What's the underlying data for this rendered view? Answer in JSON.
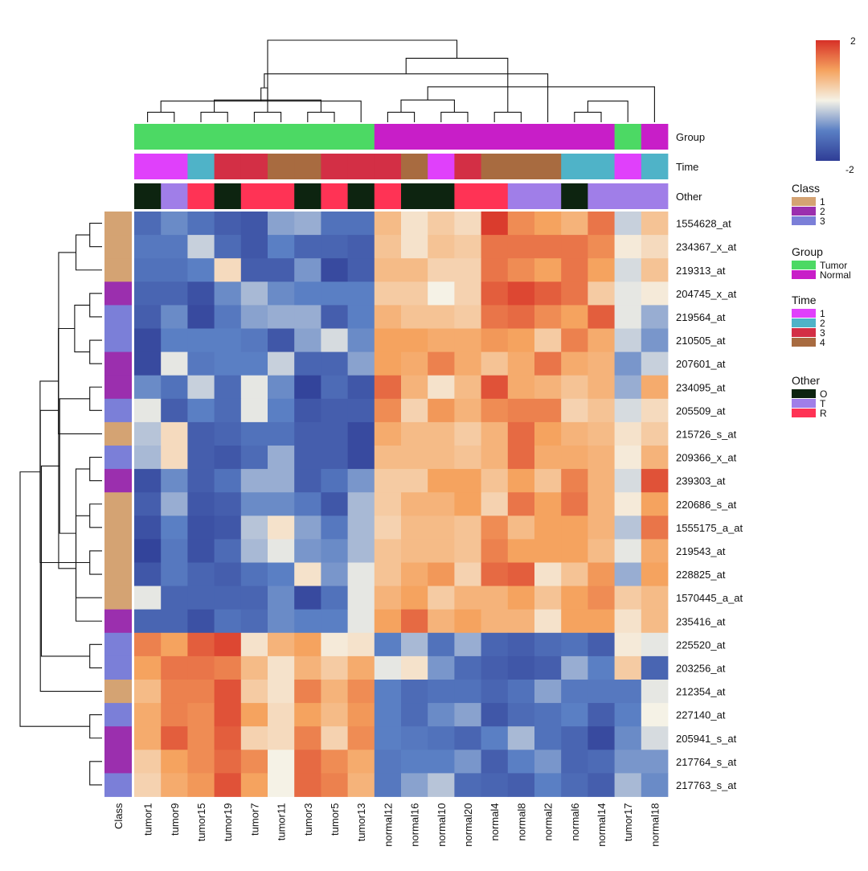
{
  "chart_data": {
    "type": "heatmap",
    "rows": [
      "1554628_at",
      "234367_x_at",
      "219313_at",
      "204745_x_at",
      "219564_at",
      "210505_at",
      "207601_at",
      "234095_at",
      "205509_at",
      "215726_s_at",
      "209366_x_at",
      "239303_at",
      "220686_s_at",
      "1555175_a_at",
      "219543_at",
      "228825_at",
      "1570445_a_at",
      "235416_at",
      "225520_at",
      "203256_at",
      "212354_at",
      "227140_at",
      "205941_s_at",
      "217764_s_at",
      "217763_s_at"
    ],
    "columns": [
      "tumor1",
      "tumor9",
      "tumor15",
      "tumor19",
      "tumor7",
      "tumor11",
      "tumor3",
      "tumor5",
      "tumor13",
      "normal12",
      "normal16",
      "normal10",
      "normal20",
      "normal4",
      "normal8",
      "normal2",
      "normal6",
      "normal14",
      "tumor17",
      "normal18"
    ],
    "values": [
      [
        -1.3,
        -0.9,
        -1.2,
        -1.5,
        -1.6,
        -0.7,
        -0.6,
        -1.2,
        -1.2,
        0.7,
        0.2,
        0.5,
        0.3,
        1.9,
        1.2,
        1.0,
        0.8,
        1.4,
        -0.3,
        0.6
      ],
      [
        -1.1,
        -1.1,
        -0.3,
        -1.3,
        -1.6,
        -1.0,
        -1.4,
        -1.4,
        -1.5,
        0.6,
        0.2,
        0.6,
        0.5,
        1.4,
        1.4,
        1.4,
        1.4,
        1.2,
        0.1,
        0.3
      ],
      [
        -1.2,
        -1.2,
        -1.0,
        0.3,
        -1.5,
        -1.5,
        -0.8,
        -1.8,
        -1.5,
        0.7,
        0.7,
        0.4,
        0.4,
        1.4,
        1.2,
        1.0,
        1.4,
        1.0,
        -0.2,
        0.6
      ],
      [
        -1.4,
        -1.4,
        -1.7,
        -0.9,
        -0.5,
        -0.9,
        -1.0,
        -1.0,
        -1.0,
        0.5,
        0.5,
        0.0,
        0.4,
        1.6,
        1.8,
        1.6,
        1.4,
        0.5,
        -0.1,
        0.1
      ],
      [
        -1.5,
        -0.9,
        -1.8,
        -1.1,
        -0.7,
        -0.6,
        -0.6,
        -1.5,
        -1.0,
        0.8,
        0.6,
        0.6,
        0.5,
        1.4,
        1.5,
        1.2,
        1.0,
        1.6,
        -0.1,
        -0.6
      ],
      [
        -1.8,
        -1.0,
        -1.0,
        -1.0,
        -1.1,
        -1.6,
        -0.7,
        -0.2,
        -0.9,
        1.0,
        1.0,
        0.9,
        0.9,
        1.1,
        1.0,
        0.5,
        1.3,
        0.9,
        -0.3,
        -0.8
      ],
      [
        -1.8,
        -0.1,
        -1.1,
        -1.0,
        -1.0,
        -0.3,
        -1.4,
        -1.4,
        -0.7,
        1.0,
        0.9,
        1.3,
        0.9,
        0.6,
        0.9,
        1.4,
        0.9,
        0.8,
        -0.8,
        -0.3
      ],
      [
        -0.9,
        -1.2,
        -0.3,
        -1.3,
        -0.1,
        -0.9,
        -1.9,
        -1.3,
        -1.6,
        1.5,
        0.8,
        0.2,
        0.7,
        1.7,
        0.9,
        0.8,
        0.6,
        0.8,
        -0.6,
        0.9
      ],
      [
        -0.1,
        -1.5,
        -1.0,
        -1.3,
        -0.1,
        -1.0,
        -1.6,
        -1.5,
        -1.5,
        1.2,
        0.4,
        1.1,
        0.8,
        1.2,
        1.3,
        1.3,
        0.4,
        0.6,
        -0.2,
        0.3
      ],
      [
        -0.4,
        0.3,
        -1.5,
        -1.4,
        -1.2,
        -1.2,
        -1.5,
        -1.5,
        -1.8,
        0.9,
        0.7,
        0.7,
        0.5,
        0.8,
        1.5,
        1.0,
        0.8,
        0.7,
        0.2,
        0.5
      ],
      [
        -0.5,
        0.3,
        -1.5,
        -1.6,
        -1.3,
        -0.6,
        -1.5,
        -1.5,
        -1.8,
        0.7,
        0.7,
        0.7,
        0.6,
        0.8,
        1.5,
        0.9,
        0.9,
        0.8,
        0.1,
        0.8
      ],
      [
        -1.7,
        -0.9,
        -1.5,
        -1.2,
        -0.6,
        -0.6,
        -1.5,
        -1.2,
        -0.8,
        0.5,
        0.5,
        1.0,
        1.0,
        0.6,
        1.0,
        0.6,
        1.3,
        0.8,
        -0.2,
        1.7
      ],
      [
        -1.5,
        -0.6,
        -1.6,
        -1.5,
        -0.9,
        -0.9,
        -1.1,
        -1.6,
        -0.5,
        0.5,
        0.8,
        0.8,
        1.0,
        0.4,
        1.4,
        1.0,
        1.4,
        0.8,
        0.1,
        1.0
      ],
      [
        -1.7,
        -1.0,
        -1.7,
        -1.6,
        -0.4,
        0.2,
        -0.7,
        -1.1,
        -0.5,
        0.4,
        0.7,
        0.7,
        0.6,
        1.2,
        0.7,
        1.0,
        1.0,
        0.8,
        -0.4,
        1.4
      ],
      [
        -1.9,
        -1.1,
        -1.7,
        -1.3,
        -0.5,
        -0.1,
        -0.8,
        -0.9,
        -0.5,
        0.6,
        0.7,
        0.7,
        0.6,
        1.3,
        1.0,
        1.0,
        1.0,
        0.7,
        -0.1,
        0.9
      ],
      [
        -1.6,
        -1.1,
        -1.4,
        -1.5,
        -1.2,
        -1.0,
        0.2,
        -0.8,
        -0.1,
        0.6,
        0.9,
        1.1,
        0.4,
        1.5,
        1.6,
        0.2,
        0.6,
        1.1,
        -0.6,
        1.0
      ],
      [
        -0.1,
        -1.4,
        -1.4,
        -1.4,
        -1.4,
        -0.9,
        -1.8,
        -1.2,
        -0.1,
        0.8,
        1.0,
        0.5,
        0.8,
        0.8,
        1.0,
        0.6,
        1.0,
        1.2,
        0.5,
        0.7
      ],
      [
        -1.4,
        -1.4,
        -1.7,
        -1.2,
        -1.3,
        -0.9,
        -1.0,
        -1.0,
        -0.1,
        1.0,
        1.5,
        0.8,
        1.0,
        0.8,
        0.8,
        0.2,
        1.0,
        1.0,
        0.2,
        0.7
      ],
      [
        1.3,
        1.0,
        1.6,
        1.8,
        0.2,
        0.8,
        1.0,
        0.1,
        0.2,
        -1.0,
        -0.5,
        -1.2,
        -0.6,
        -1.4,
        -1.5,
        -1.3,
        -1.2,
        -1.5,
        0.1,
        -0.1
      ],
      [
        1.0,
        1.4,
        1.4,
        1.3,
        0.7,
        0.2,
        0.8,
        0.5,
        0.9,
        -0.1,
        0.2,
        -0.8,
        -1.3,
        -1.5,
        -1.6,
        -1.5,
        -0.6,
        -1.0,
        0.5,
        -1.4
      ],
      [
        0.7,
        1.3,
        1.3,
        1.7,
        0.5,
        0.2,
        1.3,
        0.8,
        1.2,
        -1.0,
        -1.3,
        -1.2,
        -1.2,
        -1.4,
        -1.2,
        -0.7,
        -1.1,
        -1.1,
        -1.1,
        -0.1
      ],
      [
        0.9,
        1.3,
        1.2,
        1.7,
        1.0,
        0.3,
        1.0,
        0.7,
        1.1,
        -1.0,
        -1.3,
        -0.9,
        -0.7,
        -1.6,
        -1.3,
        -1.2,
        -1.0,
        -1.5,
        -1.0,
        0.0
      ],
      [
        0.9,
        1.6,
        1.2,
        1.6,
        0.4,
        0.3,
        1.3,
        0.4,
        1.2,
        -1.0,
        -1.1,
        -1.2,
        -1.4,
        -1.0,
        -0.5,
        -1.2,
        -1.4,
        -1.8,
        -0.9,
        -0.2
      ],
      [
        0.5,
        1.0,
        1.2,
        1.5,
        1.2,
        0.0,
        1.5,
        1.2,
        0.9,
        -1.1,
        -1.0,
        -1.0,
        -0.8,
        -1.5,
        -1.0,
        -0.8,
        -1.4,
        -1.3,
        -0.8,
        -0.8
      ],
      [
        0.4,
        0.9,
        1.1,
        1.7,
        1.0,
        0.0,
        1.5,
        1.3,
        0.8,
        -1.1,
        -0.7,
        -0.4,
        -1.3,
        -1.4,
        -1.5,
        -1.0,
        -1.3,
        -1.5,
        -0.5,
        -0.9
      ]
    ],
    "color_scale": {
      "min": -2,
      "max": 2,
      "ticks": [
        "2",
        "-2"
      ],
      "colors": [
        "#2f3d96",
        "#5a7fc4",
        "#f5f2e6",
        "#f5a35f",
        "#d73027"
      ]
    },
    "row_annotation": {
      "name": "Class",
      "values": [
        "1",
        "1",
        "1",
        "2",
        "3",
        "3",
        "2",
        "2",
        "3",
        "1",
        "3",
        "2",
        "1",
        "1",
        "1",
        "1",
        "1",
        "2",
        "3",
        "3",
        "1",
        "3",
        "2",
        "2",
        "3"
      ]
    },
    "column_annotations": [
      {
        "name": "Group",
        "values": [
          "Tumor",
          "Tumor",
          "Tumor",
          "Tumor",
          "Tumor",
          "Tumor",
          "Tumor",
          "Tumor",
          "Tumor",
          "Normal",
          "Normal",
          "Normal",
          "Normal",
          "Normal",
          "Normal",
          "Normal",
          "Normal",
          "Normal",
          "Tumor",
          "Normal"
        ]
      },
      {
        "name": "Time",
        "values": [
          "1",
          "1",
          "2",
          "3",
          "3",
          "4",
          "4",
          "3",
          "3",
          "3",
          "4",
          "1",
          "3",
          "4",
          "4",
          "4",
          "2",
          "2",
          "1",
          "2"
        ]
      },
      {
        "name": "Other",
        "values": [
          "O",
          "T",
          "R",
          "O",
          "R",
          "R",
          "O",
          "R",
          "O",
          "R",
          "O",
          "O",
          "R",
          "R",
          "T",
          "T",
          "O",
          "T",
          "T",
          "T"
        ]
      }
    ],
    "legends": [
      {
        "title": "Class",
        "items": [
          {
            "label": "1",
            "color": "#d4a373"
          },
          {
            "label": "2",
            "color": "#9b2fae"
          },
          {
            "label": "3",
            "color": "#7b7fd8"
          }
        ]
      },
      {
        "title": "Group",
        "items": [
          {
            "label": "Tumor",
            "color": "#4cd964"
          },
          {
            "label": "Normal",
            "color": "#c81ec8"
          }
        ]
      },
      {
        "title": "Time",
        "items": [
          {
            "label": "1",
            "color": "#e040fb"
          },
          {
            "label": "2",
            "color": "#4fb3c8"
          },
          {
            "label": "3",
            "color": "#d32f45"
          },
          {
            "label": "4",
            "color": "#a86b40"
          }
        ]
      },
      {
        "title": "Other",
        "items": [
          {
            "label": "O",
            "color": "#0d2410"
          },
          {
            "label": "T",
            "color": "#a07ee8"
          },
          {
            "label": "R",
            "color": "#ff3355"
          }
        ]
      }
    ],
    "col_dendrogram": [
      [
        0,
        1
      ],
      [
        2,
        3
      ],
      [
        6,
        7
      ],
      [
        4,
        5
      ],
      [
        20,
        8
      ],
      [
        21,
        22
      ],
      [
        23,
        24
      ],
      [
        9,
        10
      ],
      [
        11,
        12
      ],
      [
        13,
        14
      ],
      [
        26,
        15
      ],
      [
        16,
        17
      ],
      [
        28,
        27
      ],
      [
        29,
        30
      ],
      [
        31,
        18
      ],
      [
        19,
        32
      ],
      [
        25,
        33
      ]
    ],
    "row_dendrogram": [
      [
        0,
        1
      ],
      [
        25,
        2
      ],
      [
        3,
        4
      ],
      [
        5,
        6
      ],
      [
        27,
        28
      ],
      [
        7,
        8
      ],
      [
        29,
        9
      ],
      [
        10,
        11
      ],
      [
        12,
        13
      ],
      [
        14,
        15
      ],
      [
        32,
        16
      ],
      [
        33,
        17
      ],
      [
        31,
        34
      ],
      [
        30,
        35
      ],
      [
        26,
        36
      ],
      [
        18,
        19
      ],
      [
        21,
        22
      ],
      [
        23,
        24
      ],
      [
        39,
        20
      ],
      [
        40,
        38
      ],
      [
        37,
        41
      ]
    ]
  }
}
